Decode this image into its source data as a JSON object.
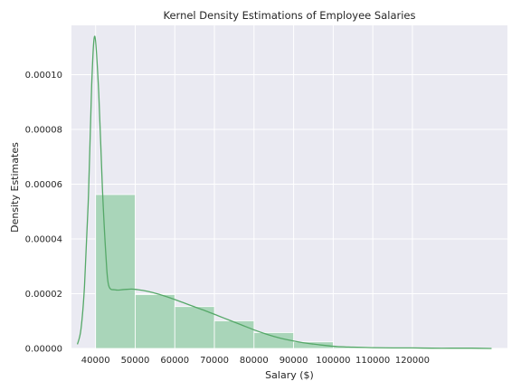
{
  "chart_data": {
    "type": "histogram",
    "title": "Kernel Density Estimations of Employee Salaries",
    "xlabel": "Salary ($)",
    "ylabel": "Density Estimates",
    "xlim": [
      33900,
      144000
    ],
    "ylim": [
      0,
      0.000118
    ],
    "xticks": [
      40000,
      50000,
      60000,
      70000,
      80000,
      90000,
      100000,
      110000,
      120000
    ],
    "xtick_labels": [
      "40000",
      "50000",
      "60000",
      "70000",
      "80000",
      "90000",
      "100000",
      "110000",
      "120000"
    ],
    "yticks": [
      0,
      2e-05,
      4e-05,
      6e-05,
      8e-05,
      0.0001
    ],
    "ytick_labels": [
      "0.00000",
      "0.00002",
      "0.00004",
      "0.00006",
      "0.00008",
      "0.00010"
    ],
    "grid": true,
    "colors": {
      "plot_bg": "#eaeaf2",
      "grid": "#ffffff",
      "bar": "#a9d5b9",
      "bar_edge": "#ffffff",
      "kde": "#55a868"
    },
    "histogram": {
      "bins": [
        {
          "x0": 40000,
          "x1": 50000,
          "density": 5.62e-05
        },
        {
          "x0": 50000,
          "x1": 60000,
          "density": 1.97e-05
        },
        {
          "x0": 60000,
          "x1": 70000,
          "density": 1.53e-05
        },
        {
          "x0": 70000,
          "x1": 80000,
          "density": 1.01e-05
        },
        {
          "x0": 80000,
          "x1": 90000,
          "density": 5.8e-06
        },
        {
          "x0": 90000,
          "x1": 100000,
          "density": 2.4e-06
        },
        {
          "x0": 100000,
          "x1": 110000,
          "density": 6e-07
        },
        {
          "x0": 110000,
          "x1": 120000,
          "density": 3e-07
        },
        {
          "x0": 120000,
          "x1": 130000,
          "density": 1e-07
        },
        {
          "x0": 130000,
          "x1": 140000,
          "density": 1e-07
        }
      ]
    },
    "kde": {
      "x": [
        35400,
        36300,
        37200,
        38200,
        39000,
        39800,
        40800,
        41700,
        42600,
        43300,
        45000,
        47000,
        49000,
        50500,
        53000,
        56000,
        59000,
        62000,
        65000,
        68000,
        71000,
        74000,
        77000,
        80000,
        83000,
        86000,
        89000,
        92000,
        95000,
        98000,
        101000,
        105000,
        110000,
        115000,
        120000,
        125000,
        130000,
        135000,
        140000
      ],
      "y": [
        1.5e-06,
        7e-06,
        2.3e-05,
        5.6e-05,
        9.6e-05,
        0.000114,
        9.3e-05,
        5.9e-05,
        3.4e-05,
        2.3e-05,
        2.14e-05,
        2.15e-05,
        2.17e-05,
        2.15e-05,
        2.09e-05,
        1.98e-05,
        1.84e-05,
        1.68e-05,
        1.52e-05,
        1.36e-05,
        1.19e-05,
        1.02e-05,
        8.5e-06,
        6.8e-06,
        5.3e-06,
        4e-06,
        3e-06,
        2.2e-06,
        1.6e-06,
        1.1e-06,
        7e-07,
        5e-07,
        3e-07,
        2e-07,
        2e-07,
        1e-07,
        1e-07,
        1e-07,
        0.0
      ]
    }
  }
}
